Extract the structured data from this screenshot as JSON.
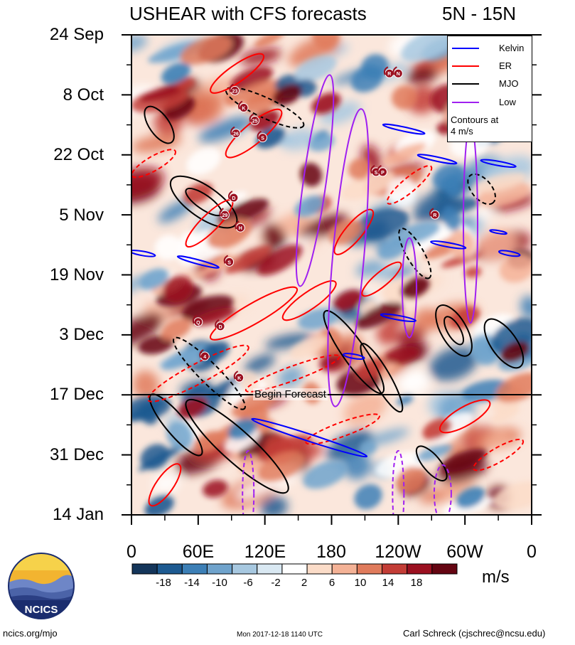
{
  "title_left": "USHEAR with CFS forecasts",
  "title_right": "5N - 15N",
  "chart_data": {
    "type": "heatmap",
    "title": "USHEAR with CFS forecasts",
    "subtitle": "5N - 15N",
    "x_ticks": [
      "0",
      "60E",
      "120E",
      "180",
      "120W",
      "60W",
      "0"
    ],
    "y_ticks": [
      "24 Sep",
      "8 Oct",
      "22 Oct",
      "5 Nov",
      "19 Nov",
      "3 Dec",
      "17 Dec",
      "31 Dec",
      "14 Jan"
    ],
    "colorbar_ticks": [
      "-18",
      "-14",
      "-10",
      "-6",
      "-2",
      "2",
      "6",
      "10",
      "14",
      "18"
    ],
    "colorbar_colors": [
      "#14355a",
      "#1d5a91",
      "#3c7fb6",
      "#6fa3cc",
      "#a7c8e0",
      "#d9e8f2",
      "#ffffff",
      "#fbdcc8",
      "#f4b296",
      "#e07b5c",
      "#c33d36",
      "#9b1020",
      "#650512"
    ],
    "units": "m/s",
    "annotation": "Begin Forecast",
    "legend": [
      {
        "label": "Kelvin",
        "color": "#0000ff"
      },
      {
        "label": "ER",
        "color": "#ff0000"
      },
      {
        "label": "MJO",
        "color": "#000000"
      },
      {
        "label": "Low",
        "color": "#a020f0"
      }
    ],
    "legend_note_1": "Contours at",
    "legend_note_2": "4 m/s",
    "storm_markers": [
      {
        "label": "R",
        "lon": 232,
        "date": "3 Oct"
      },
      {
        "label": "N",
        "lon": 240,
        "date": "3 Oct"
      },
      {
        "label": "23",
        "lon": 93,
        "date": "7 Oct"
      },
      {
        "label": "K",
        "lon": 101,
        "date": "11 Oct"
      },
      {
        "label": "25",
        "lon": 111,
        "date": "14 Oct"
      },
      {
        "label": "26",
        "lon": 94,
        "date": "17 Oct"
      },
      {
        "label": "S",
        "lon": 118,
        "date": "18 Oct"
      },
      {
        "label": "S",
        "lon": 220,
        "date": "26 Oct"
      },
      {
        "label": "P",
        "lon": 226,
        "date": "26 Oct"
      },
      {
        "label": "D",
        "lon": 92,
        "date": "1 Nov"
      },
      {
        "label": "29",
        "lon": 84,
        "date": "5 Nov"
      },
      {
        "label": "H",
        "lon": 98,
        "date": "8 Nov"
      },
      {
        "label": "R",
        "lon": 273,
        "date": "5 Nov"
      },
      {
        "label": "S",
        "lon": 88,
        "date": "16 Nov"
      },
      {
        "label": "Q",
        "lon": 60,
        "date": "30 Nov"
      },
      {
        "label": "D",
        "lon": 80,
        "date": "1 Dec"
      },
      {
        "label": "4",
        "lon": 66,
        "date": "8 Dec"
      },
      {
        "label": "K",
        "lon": 97,
        "date": "13 Dec"
      }
    ]
  },
  "footer": {
    "logo_text": "NCICS",
    "url": "ncics.org/mjo",
    "timestamp": "Mon 2017-12-18 1140 UTC",
    "credit": "Carl Schreck (cjschrec@ncsu.edu)"
  }
}
